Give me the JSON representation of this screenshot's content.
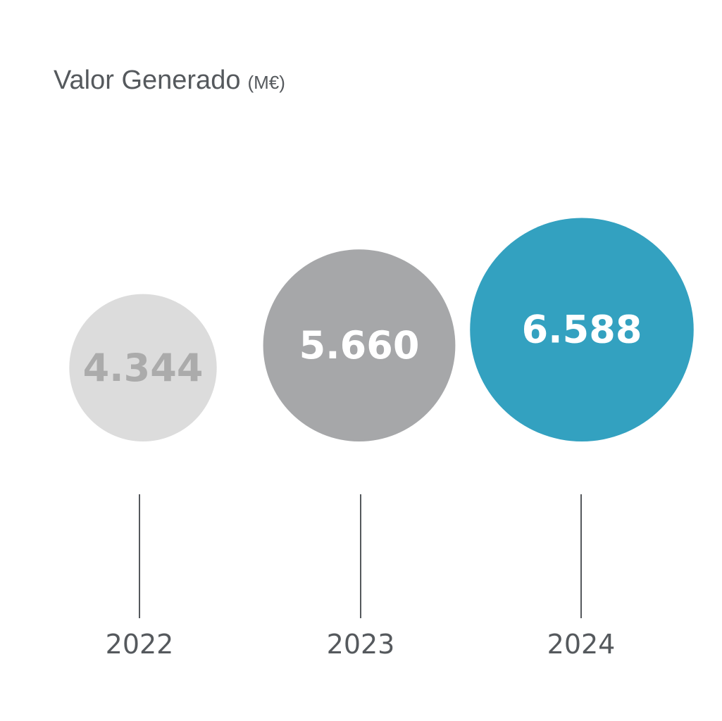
{
  "chart_data": {
    "type": "bubble",
    "title": "Valor Generado",
    "unit": "(M€)",
    "categories": [
      "2022",
      "2023",
      "2024"
    ],
    "values": [
      4344,
      5660,
      6588
    ],
    "value_labels": [
      "4.344",
      "5.660",
      "6.588"
    ],
    "colors": [
      "#dcdcdc",
      "#a6a7a9",
      "#33a1c0"
    ],
    "label_colors": [
      "#ababab",
      "#ffffff",
      "#ffffff"
    ]
  }
}
